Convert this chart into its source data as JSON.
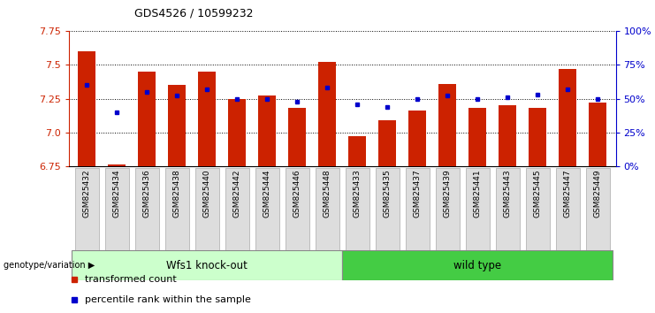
{
  "title": "GDS4526 / 10599232",
  "samples": [
    "GSM825432",
    "GSM825434",
    "GSM825436",
    "GSM825438",
    "GSM825440",
    "GSM825442",
    "GSM825444",
    "GSM825446",
    "GSM825448",
    "GSM825433",
    "GSM825435",
    "GSM825437",
    "GSM825439",
    "GSM825441",
    "GSM825443",
    "GSM825445",
    "GSM825447",
    "GSM825449"
  ],
  "red_values": [
    7.6,
    6.76,
    7.45,
    7.35,
    7.45,
    7.25,
    7.27,
    7.18,
    7.52,
    6.97,
    7.09,
    7.16,
    7.36,
    7.18,
    7.2,
    7.18,
    7.47,
    7.22
  ],
  "blue_percentile": [
    60,
    40,
    55,
    52,
    57,
    50,
    50,
    48,
    58,
    46,
    44,
    50,
    52,
    50,
    51,
    53,
    57,
    50
  ],
  "group1_label": "Wfs1 knock-out",
  "group2_label": "wild type",
  "group1_count": 9,
  "group2_count": 9,
  "ymin": 6.75,
  "ymax": 7.75,
  "y_ticks": [
    6.75,
    7.0,
    7.25,
    7.5,
    7.75
  ],
  "right_y_ticks": [
    0,
    25,
    50,
    75,
    100
  ],
  "right_y_labels": [
    "0%",
    "25%",
    "50%",
    "75%",
    "100%"
  ],
  "bar_color": "#CC2200",
  "dot_color": "#0000CC",
  "group1_bg": "#CCFFCC",
  "group2_bg": "#44CC44",
  "left_axis_color": "#CC2200",
  "right_axis_color": "#0000CC",
  "genotype_label": "genotype/variation",
  "legend_red": "transformed count",
  "legend_blue": "percentile rank within the sample",
  "bg_color": "#FFFFFF"
}
